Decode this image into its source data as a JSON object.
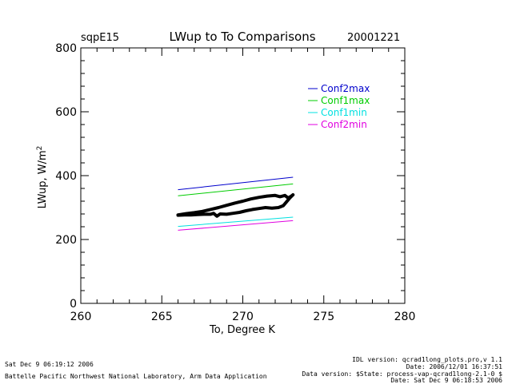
{
  "header": {
    "site": "sqpE15",
    "title": "LWup to To Comparisons",
    "date": "20001221"
  },
  "footer": {
    "left_line1": "Sat Dec  9 06:19:12 2006",
    "left_line2": "Battelle Pacific Northwest National Laboratory, Arm Data Application",
    "right_line1": "IDL version: qcrad1long_plots.pro,v 1.1",
    "right_line2": "Date: 2006/12/01 16:37:51",
    "right_line3": "Data version: $State: process-vap-qcrad1long-2.1-0 $",
    "right_line4": "Date: Sat Dec  9 06:18:53 2006"
  },
  "chart_data": {
    "type": "line",
    "title": "LWup to To Comparisons",
    "xlabel": "To, Degree K",
    "ylabel": "LWup, W/m",
    "ylabel_superscript": "2",
    "xlim": [
      260,
      280
    ],
    "ylim": [
      0,
      800
    ],
    "x_ticks": [
      260,
      265,
      270,
      275,
      280
    ],
    "x_tick_labels": [
      "260",
      "265",
      "270",
      "275",
      "280"
    ],
    "y_ticks": [
      0,
      200,
      400,
      600,
      800
    ],
    "y_tick_labels": [
      "0",
      "200",
      "400",
      "600",
      "800"
    ],
    "legend_position": "top-right",
    "series": [
      {
        "name": "Conf2max",
        "color": "#0000cc",
        "x": [
          266,
          273.1
        ],
        "y": [
          356,
          395
        ]
      },
      {
        "name": "Conf1max",
        "color": "#00cc00",
        "x": [
          266,
          273.1
        ],
        "y": [
          337,
          374
        ]
      },
      {
        "name": "Conf1min",
        "color": "#00e0e0",
        "x": [
          266,
          273.1
        ],
        "y": [
          241,
          270
        ]
      },
      {
        "name": "Conf2min",
        "color": "#e000e0",
        "x": [
          266,
          273.1
        ],
        "y": [
          229,
          259
        ]
      }
    ],
    "observed": {
      "color": "#000000",
      "x": [
        266.0,
        266.5,
        267.0,
        267.5,
        268.0,
        268.5,
        269.0,
        269.5,
        270.0,
        270.5,
        271.0,
        271.5,
        272.0,
        272.3,
        272.6,
        272.8,
        273.0,
        273.1,
        272.9,
        272.7,
        272.5,
        272.2,
        271.8,
        271.4,
        271.0,
        270.6,
        270.2,
        269.8,
        269.4,
        269.0,
        268.6,
        268.4,
        268.2,
        268.0,
        267.6,
        267.2,
        266.8,
        266.4,
        266.0
      ],
      "y": [
        277,
        281,
        284,
        288,
        294,
        300,
        307,
        314,
        320,
        327,
        332,
        336,
        338,
        334,
        338,
        330,
        336,
        340,
        330,
        318,
        306,
        300,
        298,
        300,
        297,
        294,
        290,
        285,
        282,
        279,
        280,
        273,
        282,
        279,
        279,
        278,
        277,
        277,
        276
      ]
    }
  }
}
